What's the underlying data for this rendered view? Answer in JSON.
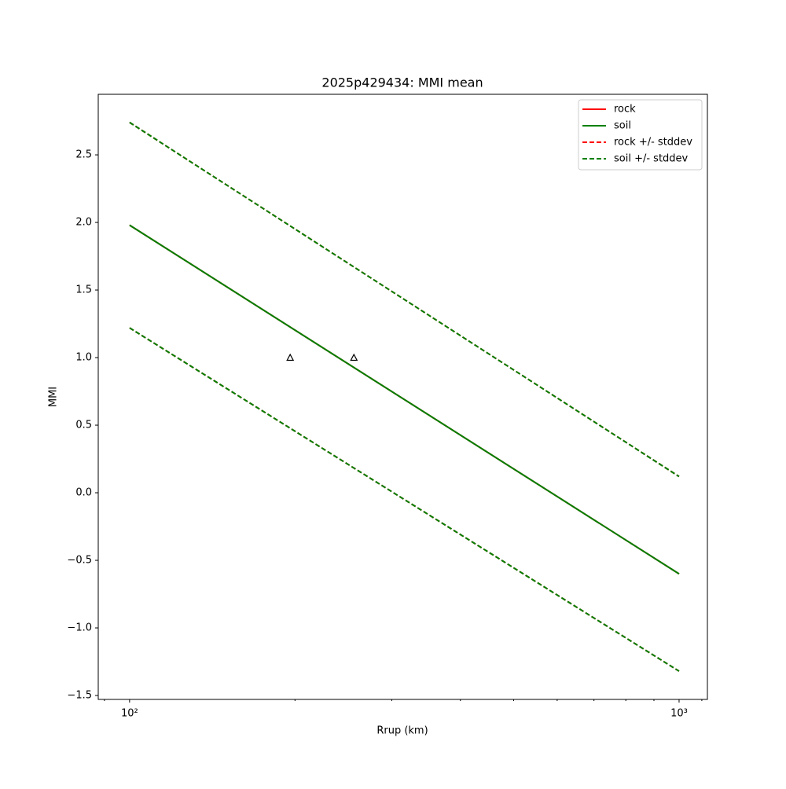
{
  "chart_data": {
    "type": "line",
    "title": "2025p429434: MMI mean",
    "xlabel": "Rrup (km)",
    "ylabel": "MMI",
    "xscale": "log",
    "x": [
      100,
      1000
    ],
    "series": [
      {
        "name": "rock",
        "color": "#ff0000",
        "dash": false,
        "values": [
          1.98,
          -0.6
        ]
      },
      {
        "name": "soil",
        "color": "#008000",
        "dash": false,
        "values": [
          1.98,
          -0.6
        ]
      },
      {
        "name": "rock +/- stddev",
        "color": "#ff0000",
        "dash": true,
        "upper": [
          2.74,
          0.12
        ],
        "lower": [
          1.22,
          -1.32
        ]
      },
      {
        "name": "soil +/- stddev",
        "color": "#008000",
        "dash": true,
        "upper": [
          2.74,
          0.12
        ],
        "lower": [
          1.22,
          -1.32
        ]
      }
    ],
    "observations": {
      "x": [
        196,
        256
      ],
      "y": [
        1.0,
        1.0
      ]
    },
    "xlim": [
      87.7,
      1126
    ],
    "ylim": [
      -1.529,
      2.948
    ],
    "xticks": [
      {
        "value": 100,
        "label": "10²"
      },
      {
        "value": 1000,
        "label": "10³"
      }
    ],
    "xminorticks": [
      90,
      200,
      300,
      400,
      500,
      600,
      700,
      800,
      900,
      1100
    ],
    "yticks": [
      {
        "value": -1.5,
        "label": "−1.5"
      },
      {
        "value": -1.0,
        "label": "−1.0"
      },
      {
        "value": -0.5,
        "label": "−0.5"
      },
      {
        "value": 0.0,
        "label": "0.0"
      },
      0.5,
      {
        "value": 1.0,
        "label": "1.0"
      },
      1.5,
      {
        "value": 2.0,
        "label": "2.0"
      },
      2.5
    ],
    "legend": "upper right"
  }
}
